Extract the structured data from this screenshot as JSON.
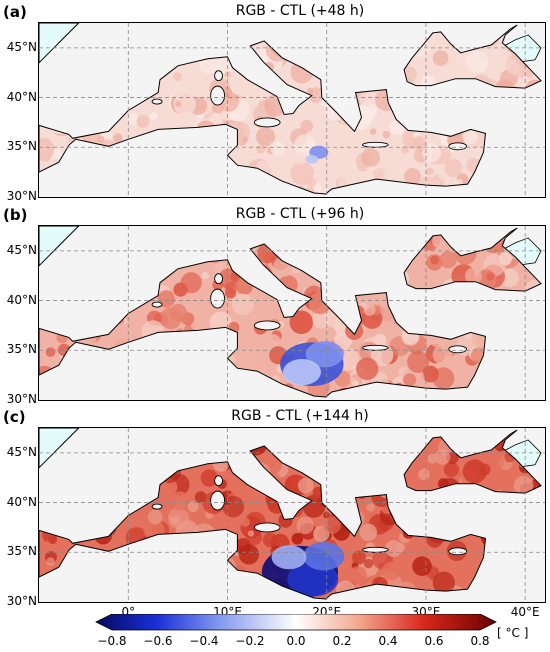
{
  "chart_data": [
    {
      "type": "heatmap",
      "panel": "(a)",
      "title": "RGB - CTL (+48 h)",
      "lat_ticks": [
        "30°N",
        "35°N",
        "40°N",
        "45°N"
      ],
      "lon_ticks": [
        "0°",
        "10°E",
        "20°E",
        "30°E",
        "40°E"
      ],
      "lon_range": [
        -9,
        42
      ],
      "lat_range": [
        30,
        47.5
      ],
      "value_range": [
        -0.15,
        0.45
      ]
    },
    {
      "type": "heatmap",
      "panel": "(b)",
      "title": "RGB - CTL (+96 h)",
      "lat_ticks": [
        "30°N",
        "35°N",
        "40°N",
        "45°N"
      ],
      "lon_ticks": [
        "0°",
        "10°E",
        "20°E",
        "30°E",
        "40°E"
      ],
      "lon_range": [
        -9,
        42
      ],
      "lat_range": [
        30,
        47.5
      ],
      "value_range": [
        -0.4,
        0.6
      ]
    },
    {
      "type": "heatmap",
      "panel": "(c)",
      "title": "RGB - CTL (+144 h)",
      "lat_ticks": [
        "30°N",
        "35°N",
        "40°N",
        "45°N"
      ],
      "lon_ticks": [
        "0°",
        "10°E",
        "20°E",
        "30°E",
        "40°E"
      ],
      "lon_range": [
        -9,
        42
      ],
      "lat_range": [
        30,
        47.5
      ],
      "value_range": [
        -0.8,
        0.8
      ]
    }
  ],
  "colorbar": {
    "ticks": [
      "−0.8",
      "−0.6",
      "−0.4",
      "−0.2",
      "0.0",
      "0.2",
      "0.4",
      "0.6",
      "0.8"
    ],
    "unit": "[ °C ]",
    "range": [
      -0.8,
      0.8
    ],
    "colors": [
      "#08085e",
      "#1a2fd6",
      "#8c9ff0",
      "#ffffff",
      "#f2a58d",
      "#d8281c",
      "#6b0000"
    ]
  }
}
